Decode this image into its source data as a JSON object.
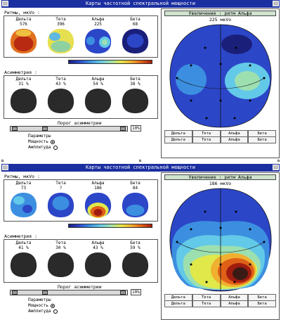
{
  "panels": [
    {
      "title": "Карты частотной спектральной мощности",
      "rhythms_label": "Ритмы, мкVo :",
      "rhythms": [
        {
          "name": "Дельта",
          "value": "576"
        },
        {
          "name": "Тета",
          "value": "396"
        },
        {
          "name": "Альфа",
          "value": "225"
        },
        {
          "name": "Бета",
          "value": "68"
        }
      ],
      "asym_label": "Асимметрия :",
      "asym": [
        {
          "name": "Дельта",
          "value": "31 %"
        },
        {
          "name": "Тета",
          "value": "43 %"
        },
        {
          "name": "Альфа",
          "value": "54 %"
        },
        {
          "name": "Бета",
          "value": "38 %"
        }
      ],
      "threshold_label": "Порог асимметрии",
      "threshold_percent": "10%",
      "threshold_value": 0.25,
      "params_label": "Параметры",
      "params_options": [
        "Мощность",
        "Амплитуда"
      ],
      "params_selected": 0,
      "zoom_header": "Увеличение : ритм Альфа",
      "zoom_value": "225 мкVo",
      "zoom_buttons": [
        "Дельта",
        "Тета",
        "Альфа",
        "Бета"
      ],
      "zoom_buttons2": [
        "Дельта",
        "Тета",
        "Альфа",
        "Бета"
      ]
    },
    {
      "title": "Карты частотной спектральной мощности",
      "rhythms_label": "Ритмы, мкVo :",
      "rhythms": [
        {
          "name": "Дельта",
          "value": "73"
        },
        {
          "name": "Тета",
          "value": "?"
        },
        {
          "name": "Альфа",
          "value": "186"
        },
        {
          "name": "Бета",
          "value": "84"
        }
      ],
      "asym_label": "Асимметрия :",
      "asym": [
        {
          "name": "Дельта",
          "value": "41 %"
        },
        {
          "name": "Тета",
          "value": "30 %"
        },
        {
          "name": "Альфа",
          "value": "43 %"
        },
        {
          "name": "Бета",
          "value": "59 %"
        }
      ],
      "threshold_label": "Порог асимметрии",
      "threshold_percent": "10%",
      "threshold_value": 0.25,
      "params_label": "Параметры",
      "params_options": [
        "Мощность",
        "Амплитуда"
      ],
      "params_selected": 0,
      "zoom_header": "Увеличение : ритм Альфа",
      "zoom_value": "186 мкVo",
      "zoom_buttons": [
        "Дельта",
        "Тета",
        "Альфа",
        "Бета"
      ],
      "zoom_buttons2": [
        "Дельта",
        "Тета",
        "Альфа",
        "Бета"
      ]
    }
  ],
  "colors": {
    "titlebar": "#1b2fa0",
    "background_map": "#2c46c8",
    "asym_map": "#2a2a2a"
  }
}
